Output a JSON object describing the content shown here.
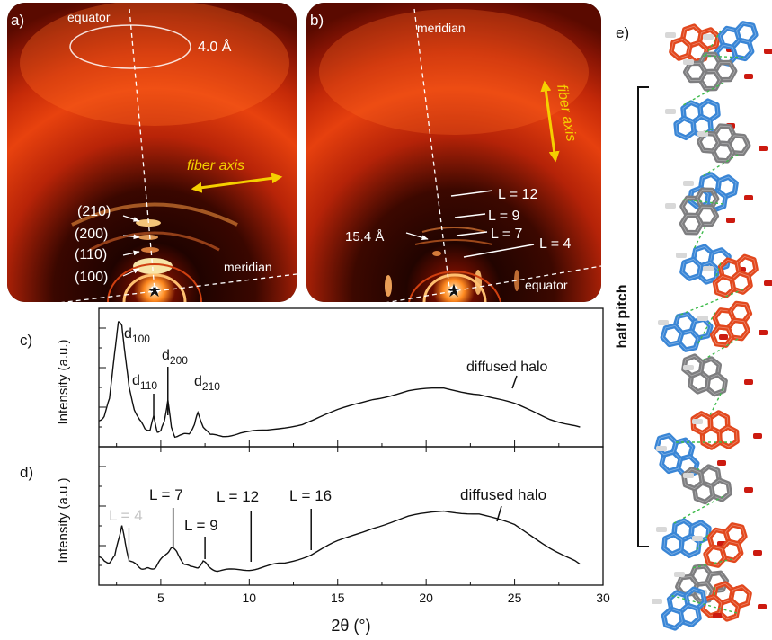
{
  "panels": {
    "a": {
      "label": "a)",
      "equator_label": "equator",
      "ring_label": "4.0 Å",
      "fiber_axis_label": "fiber axis",
      "meridian_label": "meridian",
      "reflections": [
        "(210)",
        "(200)",
        "(110)",
        "(100)"
      ]
    },
    "b": {
      "label": "b)",
      "meridian_label": "meridian",
      "fiber_axis_label": "fiber axis",
      "equator_label": "equator",
      "spacing_label": "15.4 Å",
      "layer_lines": [
        "L = 12",
        "L = 9",
        "L = 7",
        "L = 4"
      ]
    },
    "e": {
      "label": "e)",
      "bracket_label": "half pitch"
    }
  },
  "chart_data": [
    {
      "type": "line",
      "panel_label": "c)",
      "xlabel": "",
      "ylabel": "Intensity (a.u.)",
      "xlim": [
        1.5,
        30
      ],
      "x": [
        1.5,
        1.8,
        2.1,
        2.4,
        2.6,
        2.8,
        3.0,
        3.2,
        3.5,
        3.8,
        4.1,
        4.4,
        4.6,
        4.8,
        5.0,
        5.2,
        5.4,
        5.6,
        5.8,
        6.2,
        6.6,
        6.9,
        7.1,
        7.4,
        7.8,
        8.5,
        9.5,
        11,
        13,
        15,
        17,
        19,
        21,
        23,
        25,
        27,
        28.7
      ],
      "y": [
        0.18,
        0.22,
        0.35,
        0.75,
        0.97,
        0.95,
        0.7,
        0.45,
        0.28,
        0.18,
        0.12,
        0.11,
        0.21,
        0.1,
        0.09,
        0.18,
        0.35,
        0.12,
        0.06,
        0.06,
        0.08,
        0.15,
        0.24,
        0.14,
        0.06,
        0.06,
        0.08,
        0.1,
        0.16,
        0.26,
        0.36,
        0.42,
        0.44,
        0.4,
        0.31,
        0.2,
        0.13
      ],
      "annotations": [
        {
          "main": "d",
          "sub": "100",
          "x": 2.8
        },
        {
          "main": "d",
          "sub": "110",
          "x": 4.6
        },
        {
          "main": "d",
          "sub": "200",
          "x": 5.4
        },
        {
          "main": "d",
          "sub": "210",
          "x": 7.1
        },
        {
          "main": "diffused halo",
          "sub": "",
          "x": 21.5
        }
      ]
    },
    {
      "type": "line",
      "panel_label": "d)",
      "xlabel": "2θ (°)",
      "ylabel": "Intensity (a.u.)",
      "xlim": [
        1.5,
        30
      ],
      "xticks": [
        5,
        10,
        15,
        20,
        25,
        30
      ],
      "x": [
        1.5,
        1.8,
        2.1,
        2.4,
        2.6,
        2.8,
        3.0,
        3.2,
        3.5,
        3.8,
        4.1,
        4.4,
        4.7,
        5.0,
        5.3,
        5.6,
        5.9,
        6.3,
        6.7,
        7.1,
        7.4,
        7.7,
        8.2,
        9.0,
        10.0,
        11,
        12,
        13.5,
        15,
        17,
        19,
        21,
        23,
        25,
        27,
        28.7
      ],
      "y": [
        0.2,
        0.16,
        0.16,
        0.2,
        0.34,
        0.45,
        0.3,
        0.18,
        0.14,
        0.12,
        0.1,
        0.1,
        0.12,
        0.17,
        0.23,
        0.27,
        0.24,
        0.15,
        0.11,
        0.12,
        0.16,
        0.12,
        0.09,
        0.09,
        0.1,
        0.12,
        0.15,
        0.22,
        0.32,
        0.44,
        0.52,
        0.57,
        0.55,
        0.45,
        0.28,
        0.14
      ],
      "annotations": [
        {
          "main": "L = 4",
          "x": 3.2,
          "faded": true
        },
        {
          "main": "L = 7",
          "x": 5.7,
          "faded": false
        },
        {
          "main": "L = 9",
          "x": 7.5,
          "faded": false
        },
        {
          "main": "L = 12",
          "x": 10.1,
          "faded": false
        },
        {
          "main": "L = 16",
          "x": 13.5,
          "faded": false
        },
        {
          "main": "diffused halo",
          "x": 22.5,
          "faded": false
        }
      ]
    }
  ],
  "colors": {
    "pattern_dark": "#1c0300",
    "pattern_ring": "#e8320a",
    "pattern_hot": "#fff4c8",
    "fiber_axis": "#f5d000",
    "molecule_blue": "#3a86d6",
    "molecule_red": "#e2481e",
    "molecule_gray": "#7e7e80",
    "hbond_green": "#3dbb4a"
  }
}
